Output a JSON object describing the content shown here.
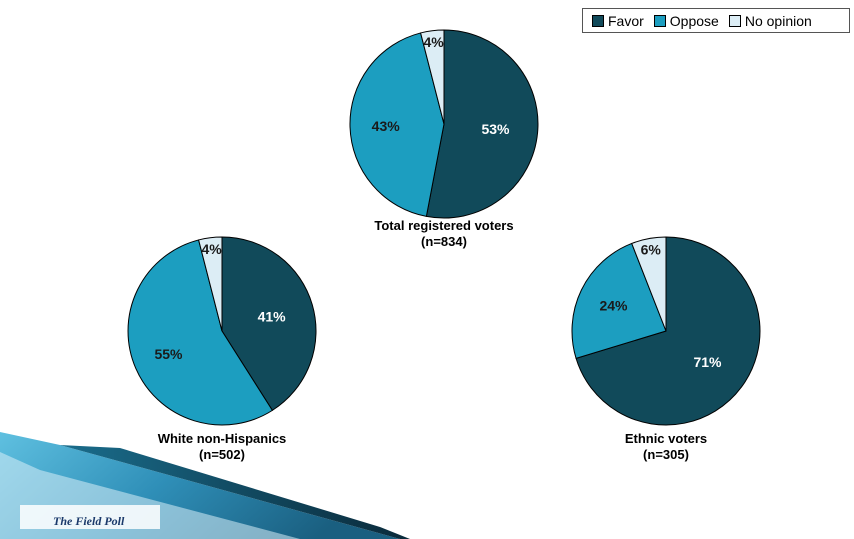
{
  "colors": {
    "favor": "#114a5a",
    "oppose": "#1c9ec0",
    "no_opinion": "#dcedf5",
    "label_dark_text": "#1a1a1a",
    "label_light_text": "#ffffff",
    "ribbon_light": "#3fa8cf",
    "ribbon_dark": "#0e3f55"
  },
  "legend": {
    "items": [
      {
        "name": "Favor",
        "color": "#114a5a"
      },
      {
        "name": "Oppose",
        "color": "#1c9ec0"
      },
      {
        "name": "No opinion",
        "color": "#dcedf5"
      }
    ]
  },
  "chart_data": [
    {
      "type": "pie",
      "title": "Total registered voters",
      "subtitle": "(n=834)",
      "categories": [
        "Favor",
        "Oppose",
        "No opinion"
      ],
      "values": [
        53,
        43,
        4
      ],
      "labels": [
        "53%",
        "43%",
        "4%"
      ]
    },
    {
      "type": "pie",
      "title": "White non-Hispanics",
      "subtitle": "(n=502)",
      "categories": [
        "Favor",
        "Oppose",
        "No opinion"
      ],
      "values": [
        41,
        55,
        4
      ],
      "labels": [
        "41%",
        "55%",
        "4%"
      ]
    },
    {
      "type": "pie",
      "title": "Ethnic voters",
      "subtitle": "(n=305)",
      "categories": [
        "Favor",
        "Oppose",
        "No opinion"
      ],
      "values": [
        71,
        24,
        6
      ],
      "labels": [
        "71%",
        "24%",
        "6%"
      ]
    }
  ],
  "footer": {
    "brand": "The Field Poll"
  }
}
